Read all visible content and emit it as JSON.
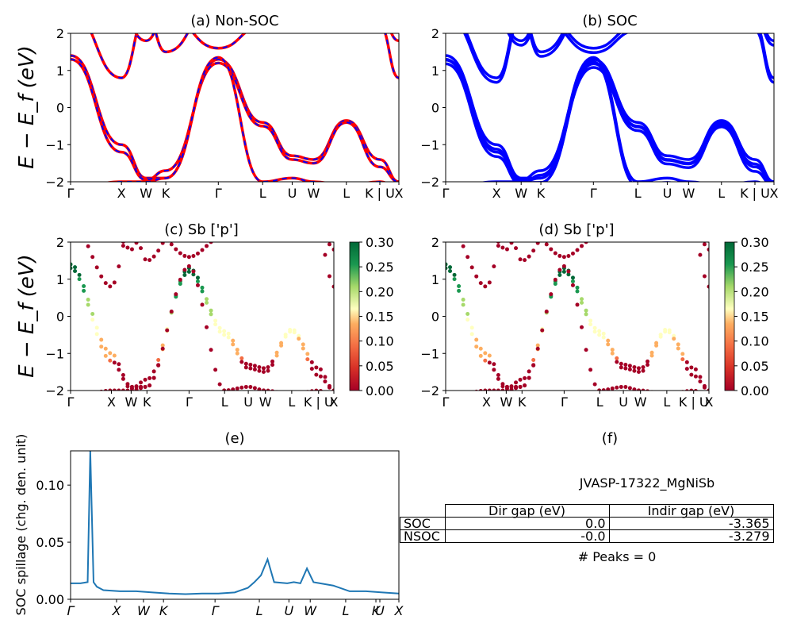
{
  "chart_data": [
    {
      "type": "line",
      "title": "(a) Non-SOC",
      "ylabel": "E − E_f (eV)",
      "ylim": [
        -2,
        2
      ],
      "yticks": [
        "2",
        "1",
        "0",
        "−1",
        "−2"
      ],
      "xticks": [
        "Γ",
        "X",
        "W",
        "K",
        "Γ",
        "L",
        "U",
        "W",
        "L",
        "K | U",
        "X"
      ],
      "series": [
        {
          "color": "#ff0000",
          "style": "solid"
        },
        {
          "color": "#0000ff",
          "style": "dashed"
        }
      ]
    },
    {
      "type": "line",
      "title": "(b) SOC",
      "ylim": [
        -2,
        2
      ],
      "yticks": [
        "2",
        "1",
        "0",
        "−1",
        "−2"
      ],
      "xticks": [
        "Γ",
        "X",
        "W",
        "K",
        "Γ",
        "L",
        "U",
        "W",
        "L",
        "K | U",
        "X"
      ],
      "series": [
        {
          "color": "#0000ff",
          "style": "solid"
        }
      ]
    },
    {
      "type": "scatter",
      "title": "(c)  Sb ['p']",
      "ylabel": "E − E_f (eV)",
      "ylim": [
        -2,
        2
      ],
      "yticks": [
        "2",
        "1",
        "0",
        "−1",
        "−2"
      ],
      "xticks": [
        "Γ",
        "X",
        "W",
        "K",
        "Γ",
        "L",
        "U",
        "W",
        "L",
        "K | U",
        "X"
      ],
      "colorbar": {
        "range": [
          0.0,
          0.3
        ],
        "ticks": [
          "0.30",
          "0.25",
          "0.20",
          "0.15",
          "0.10",
          "0.05",
          "0.00"
        ],
        "colormap": "RdYlGn"
      }
    },
    {
      "type": "scatter",
      "title": "(d) Sb ['p']",
      "ylim": [
        -2,
        2
      ],
      "yticks": [
        "2",
        "1",
        "0",
        "−1",
        "−2"
      ],
      "xticks": [
        "Γ",
        "X",
        "W",
        "K",
        "Γ",
        "L",
        "U",
        "W",
        "L",
        "K | U",
        "X"
      ],
      "colorbar": {
        "range": [
          0.0,
          0.3
        ],
        "ticks": [
          "0.30",
          "0.25",
          "0.20",
          "0.15",
          "0.10",
          "0.05",
          "0.00"
        ],
        "colormap": "RdYlGn"
      }
    },
    {
      "type": "line",
      "title": "(e)",
      "ylabel": "SOC spillage (chg. den. unit)",
      "ylim": [
        0,
        0.13
      ],
      "yticks": [
        "0.10",
        "0.05",
        "0.00"
      ],
      "xticks": [
        "Γ",
        "X",
        "W",
        "K",
        "Γ",
        "L",
        "U",
        "W",
        "L",
        "K",
        "U",
        "X"
      ],
      "series": [
        {
          "color": "#1f77b4",
          "x": [
            0,
            0.03,
            0.052,
            0.06,
            0.07,
            0.08,
            0.1,
            0.15,
            0.2,
            0.25,
            0.3,
            0.35,
            0.4,
            0.45,
            0.5,
            0.52,
            0.54,
            0.56,
            0.58,
            0.6,
            0.62,
            0.66,
            0.68,
            0.7,
            0.72,
            0.74,
            0.76,
            0.8,
            0.85,
            0.9,
            0.95,
            1.0
          ],
          "values": [
            0.014,
            0.014,
            0.015,
            0.13,
            0.015,
            0.011,
            0.008,
            0.007,
            0.007,
            0.006,
            0.005,
            0.0045,
            0.005,
            0.005,
            0.006,
            0.008,
            0.01,
            0.015,
            0.021,
            0.035,
            0.015,
            0.014,
            0.015,
            0.014,
            0.027,
            0.015,
            0.014,
            0.012,
            0.007,
            0.007,
            0.006,
            0.005
          ]
        }
      ]
    }
  ],
  "panel_f": {
    "title": "(f)",
    "material": "JVASP-17322_MgNiSb",
    "headers": [
      "Dir gap (eV)",
      "Indir gap (eV)"
    ],
    "rows": [
      {
        "label": "SOC",
        "dir": "0.0",
        "indir": "-3.365"
      },
      {
        "label": "NSOC",
        "dir": "-0.0",
        "indir": "-3.279"
      }
    ],
    "peaks": "# Peaks = 0"
  }
}
